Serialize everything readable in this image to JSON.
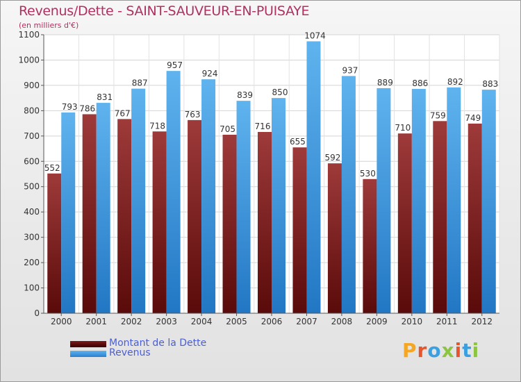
{
  "title": "Revenus/Dette - SAINT-SAUVEUR-EN-PUISAYE",
  "subtitle": "(en milliers d'€)",
  "legend": {
    "debt_label": "Montant de la Dette",
    "revenue_label": "Revenus"
  },
  "logo": {
    "text": "Proxiti"
  },
  "colors": {
    "debt_top": "#9e3a3a",
    "debt_bottom": "#5a0a0a",
    "revenue_top": "#5fb3ee",
    "revenue_bottom": "#2277c4",
    "title": "#b03060",
    "legend_text": "#4a5fd6"
  },
  "chart_data": {
    "type": "bar",
    "title": "Revenus/Dette - SAINT-SAUVEUR-EN-PUISAYE",
    "ylabel": "(en milliers d'€)",
    "categories": [
      "2000",
      "2001",
      "2002",
      "2003",
      "2004",
      "2005",
      "2006",
      "2007",
      "2008",
      "2009",
      "2010",
      "2011",
      "2012"
    ],
    "series": [
      {
        "name": "Montant de la Dette",
        "values": [
          552,
          786,
          767,
          718,
          763,
          705,
          716,
          655,
          592,
          530,
          710,
          759,
          749
        ]
      },
      {
        "name": "Revenus",
        "values": [
          793,
          831,
          887,
          957,
          924,
          839,
          850,
          1074,
          937,
          889,
          886,
          892,
          883
        ]
      }
    ],
    "ylim": [
      0,
      1100
    ],
    "yticks": [
      0,
      100,
      200,
      300,
      400,
      500,
      600,
      700,
      800,
      900,
      1000,
      1100
    ],
    "grid": true,
    "legend_position": "bottom-left"
  }
}
